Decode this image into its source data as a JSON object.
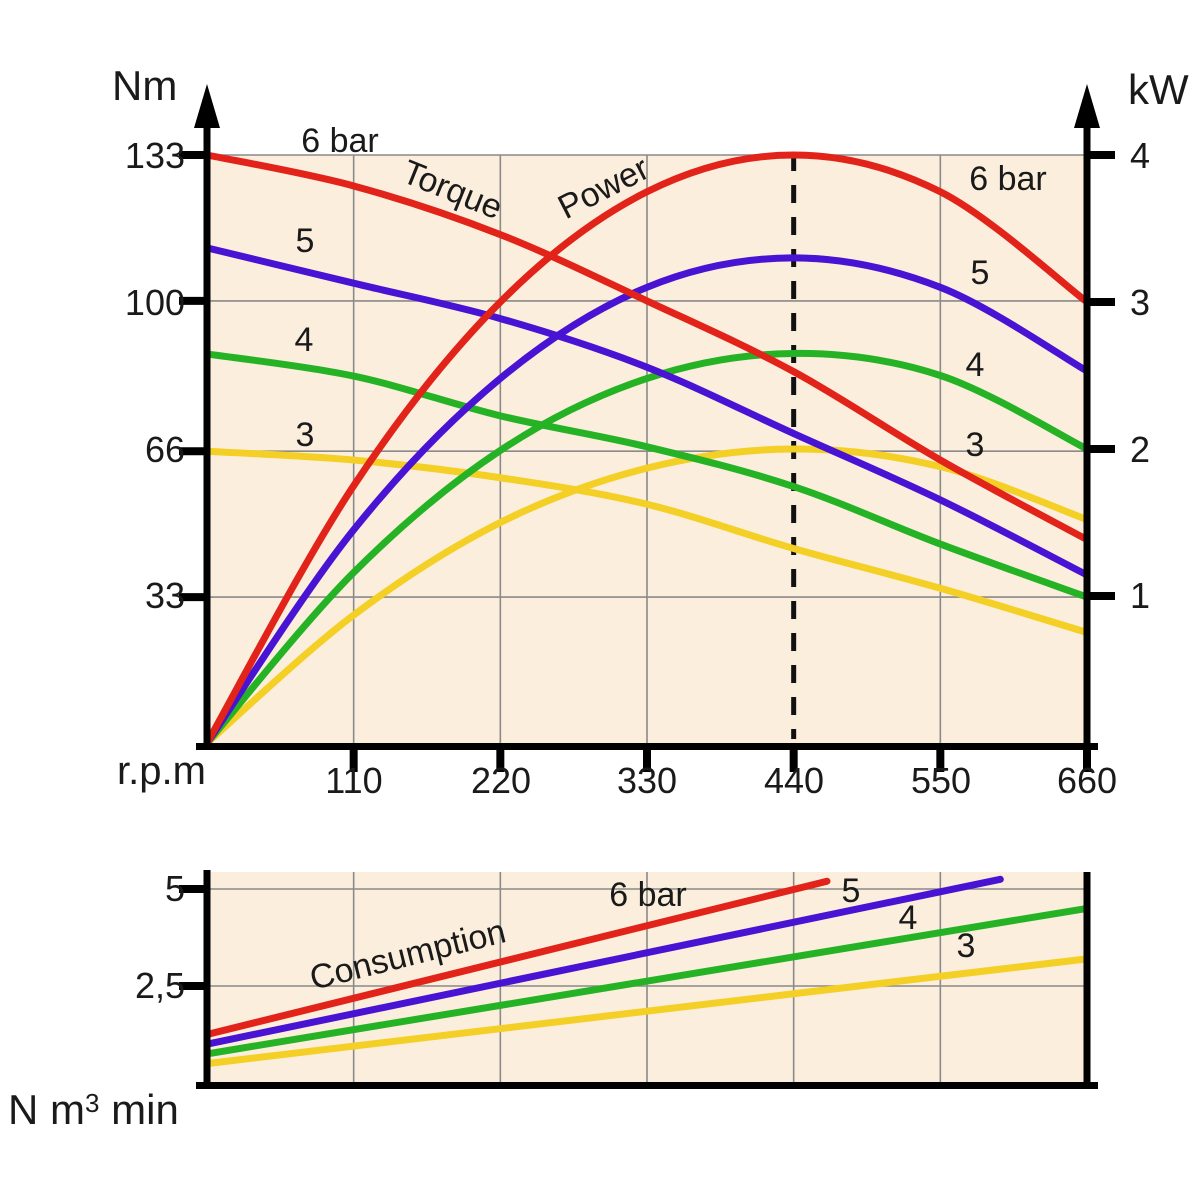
{
  "colors": {
    "curve_red": "#e2231a",
    "curve_blue": "#4913d3",
    "curve_green": "#25b325",
    "curve_yellow": "#f4cf26",
    "plot_background": "#fbeedd",
    "gridline": "#8a8a8a",
    "axis": "#000000",
    "dashed_line": "#111111"
  },
  "main_chart": {
    "y_left_unit": "Nm",
    "y_right_unit": "kW",
    "x_unit": "r.p.m",
    "y_left_ticks": [
      "133",
      "100",
      "66",
      "33"
    ],
    "y_right_ticks": [
      "4",
      "3",
      "2",
      "1"
    ],
    "x_ticks": [
      "110",
      "220",
      "330",
      "440",
      "550",
      "660"
    ],
    "torque_label": "Torque",
    "power_label": "Power",
    "torque_series_labels": [
      "6 bar",
      "5",
      "4",
      "3"
    ],
    "power_series_labels": [
      "6 bar",
      "5",
      "4",
      "3"
    ]
  },
  "consumption_chart": {
    "curve_group_label": "Consumption",
    "series_labels": [
      "6 bar",
      "5",
      "4",
      "3"
    ],
    "y_ticks": [
      "5",
      "2,5"
    ],
    "unit_prefix": "N m",
    "unit_sup": "3",
    "unit_suffix": " min"
  },
  "chart_data": [
    {
      "type": "line",
      "title": "Torque and Power vs speed",
      "x_axis": {
        "label": "r.p.m",
        "range": [
          0,
          660
        ],
        "ticks": [
          110,
          220,
          330,
          440,
          550,
          660
        ]
      },
      "y_axis_left": {
        "label": "Nm",
        "range": [
          0,
          133
        ],
        "ticks": [
          33,
          66,
          100,
          133
        ]
      },
      "y_axis_right": {
        "label": "kW",
        "range": [
          0,
          4
        ],
        "ticks": [
          1,
          2,
          3,
          4
        ]
      },
      "grid": true,
      "dashed_marker_x": 440,
      "series": [
        {
          "name": "torque-3bar",
          "pressure_bar": 3,
          "axis": "left",
          "color": "yellow",
          "points": [
            [
              0,
              66
            ],
            [
              110,
              64
            ],
            [
              220,
              60
            ],
            [
              330,
              54
            ],
            [
              440,
              44
            ],
            [
              550,
              35
            ],
            [
              660,
              25
            ]
          ]
        },
        {
          "name": "power-3bar",
          "pressure_bar": 3,
          "axis": "right",
          "color": "yellow",
          "points": [
            [
              0,
              0
            ],
            [
              110,
              0.87
            ],
            [
              220,
              1.5
            ],
            [
              330,
              1.87
            ],
            [
              440,
              2.0
            ],
            [
              550,
              1.88
            ],
            [
              660,
              1.52
            ]
          ]
        },
        {
          "name": "torque-4bar",
          "pressure_bar": 4,
          "axis": "left",
          "color": "green",
          "points": [
            [
              0,
              88
            ],
            [
              110,
              83
            ],
            [
              220,
              74
            ],
            [
              330,
              67
            ],
            [
              440,
              58
            ],
            [
              550,
              45
            ],
            [
              660,
              33
            ]
          ]
        },
        {
          "name": "power-4bar",
          "pressure_bar": 4,
          "axis": "right",
          "color": "green",
          "points": [
            [
              0,
              0
            ],
            [
              110,
              1.16
            ],
            [
              220,
              1.99
            ],
            [
              330,
              2.48
            ],
            [
              440,
              2.65
            ],
            [
              550,
              2.5
            ],
            [
              660,
              2.0
            ]
          ]
        },
        {
          "name": "torque-5bar",
          "pressure_bar": 5,
          "axis": "left",
          "color": "blue",
          "points": [
            [
              0,
              112
            ],
            [
              110,
              104
            ],
            [
              220,
              96
            ],
            [
              330,
              85
            ],
            [
              440,
              70
            ],
            [
              550,
              55
            ],
            [
              660,
              38
            ]
          ]
        },
        {
          "name": "power-5bar",
          "pressure_bar": 5,
          "axis": "right",
          "color": "blue",
          "points": [
            [
              0,
              0
            ],
            [
              110,
              1.45
            ],
            [
              220,
              2.48
            ],
            [
              330,
              3.1
            ],
            [
              440,
              3.3
            ],
            [
              550,
              3.1
            ],
            [
              660,
              2.53
            ]
          ]
        },
        {
          "name": "torque-6bar",
          "pressure_bar": 6,
          "axis": "left",
          "color": "red",
          "points": [
            [
              0,
              133
            ],
            [
              110,
              126
            ],
            [
              220,
              115
            ],
            [
              330,
              100
            ],
            [
              440,
              84
            ],
            [
              550,
              64
            ],
            [
              660,
              46
            ]
          ]
        },
        {
          "name": "power-6bar",
          "pressure_bar": 6,
          "axis": "right",
          "color": "red",
          "points": [
            [
              0,
              0
            ],
            [
              110,
              1.75
            ],
            [
              220,
              3.0
            ],
            [
              330,
              3.75
            ],
            [
              440,
              4.0
            ],
            [
              550,
              3.75
            ],
            [
              660,
              3.0
            ]
          ]
        }
      ]
    },
    {
      "type": "line",
      "title": "Consumption vs speed",
      "x_axis": {
        "label": "r.p.m",
        "range": [
          0,
          660
        ],
        "ticks": [
          110,
          220,
          330,
          440,
          550
        ]
      },
      "y_axis": {
        "label": "N m3 min",
        "range": [
          0,
          5.45
        ],
        "ticks": [
          2.5,
          5
        ]
      },
      "grid": true,
      "series": [
        {
          "name": "consumption-3bar",
          "pressure_bar": 3,
          "color": "yellow",
          "points": [
            [
              0,
              0.5
            ],
            [
              660,
              3.2
            ]
          ]
        },
        {
          "name": "consumption-4bar",
          "pressure_bar": 4,
          "color": "green",
          "points": [
            [
              0,
              0.75
            ],
            [
              660,
              4.5
            ]
          ]
        },
        {
          "name": "consumption-5bar",
          "pressure_bar": 5,
          "color": "blue",
          "points": [
            [
              0,
              1.0
            ],
            [
              595,
              5.25
            ]
          ]
        },
        {
          "name": "consumption-6bar",
          "pressure_bar": 6,
          "color": "red",
          "points": [
            [
              0,
              1.25
            ],
            [
              465,
              5.2
            ]
          ]
        }
      ]
    }
  ]
}
